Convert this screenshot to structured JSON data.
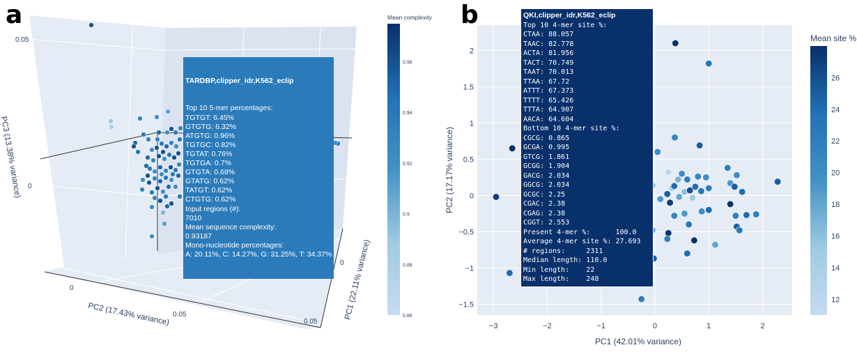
{
  "panels": {
    "a": {
      "letter": "a"
    },
    "b": {
      "letter": "b"
    }
  },
  "chart_data": [
    {
      "type": "scatter",
      "projection": "3d",
      "xlabel": "PC1 (22.11% variance)",
      "ylabel": "PC2 (17.43% variance)",
      "zlabel": "PC3 (13.38% variance)",
      "x_ticks": [
        "0",
        "0.05"
      ],
      "y_ticks": [
        "0",
        "0.05"
      ],
      "z_ticks": [
        "0",
        "0.05"
      ],
      "colorbar": {
        "title": "Mean complexity",
        "colorscale": "Blues",
        "range": [
          0.86,
          0.975
        ],
        "ticks": [
          0.86,
          0.88,
          0.9,
          0.92,
          0.94,
          0.96
        ],
        "tick_labels": [
          "0.86",
          "0.88",
          "0.9",
          "0.92",
          "0.94",
          "0.96"
        ]
      },
      "grid": true,
      "tooltip": {
        "title": "TARDBP,clipper_idr,K562_eclip",
        "lines": [
          "Top 10 5-mer percentages:",
          "TGTGT: 6.45%",
          "GTGTG: 6.32%",
          "ATGTG: 0.96%",
          "TGTGC: 0.82%",
          "TGTAT: 0.76%",
          "TGTGA: 0.7%",
          "GTGTA: 0.68%",
          "GTATG: 0.62%",
          "TATGT: 0.62%",
          "CTGTG: 0.62%",
          "Input regions (#):",
          "7010",
          "Mean sequence complexity:",
          "0.93187",
          "Mono-nucleotide percentages:",
          "A: 20.11%, C: 14.27%, G: 31.25%, T: 34.37%"
        ]
      },
      "points_projected": [
        {
          "u": 131,
          "v": 36,
          "c": 0.96
        },
        {
          "u": 159,
          "v": 174,
          "c": 0.89
        },
        {
          "u": 160,
          "v": 182,
          "c": 0.88
        },
        {
          "u": 218,
          "v": 339,
          "c": 0.92
        },
        {
          "u": 234,
          "v": 305,
          "c": 0.9
        },
        {
          "u": 236,
          "v": 321,
          "c": 0.91
        },
        {
          "u": 485,
          "v": 206,
          "c": 0.94
        },
        {
          "u": 481,
          "v": 205,
          "c": 0.92
        },
        {
          "u": 201,
          "v": 170,
          "c": 0.93
        },
        {
          "u": 225,
          "v": 168,
          "c": 0.92
        },
        {
          "u": 241,
          "v": 160,
          "c": 0.91
        },
        {
          "u": 206,
          "v": 193,
          "c": 0.94
        },
        {
          "u": 194,
          "v": 205,
          "c": 0.95
        },
        {
          "u": 192,
          "v": 210,
          "c": 0.96
        },
        {
          "u": 213,
          "v": 200,
          "c": 0.93
        },
        {
          "u": 228,
          "v": 190,
          "c": 0.95
        },
        {
          "u": 240,
          "v": 190,
          "c": 0.92
        },
        {
          "u": 246,
          "v": 185,
          "c": 0.96
        },
        {
          "u": 252,
          "v": 190,
          "c": 0.94
        },
        {
          "u": 259,
          "v": 184,
          "c": 0.93
        },
        {
          "u": 218,
          "v": 215,
          "c": 0.92
        },
        {
          "u": 225,
          "v": 212,
          "c": 0.96
        },
        {
          "u": 232,
          "v": 206,
          "c": 0.94
        },
        {
          "u": 239,
          "v": 210,
          "c": 0.95
        },
        {
          "u": 246,
          "v": 205,
          "c": 0.93
        },
        {
          "u": 253,
          "v": 210,
          "c": 0.92
        },
        {
          "u": 212,
          "v": 226,
          "c": 0.95
        },
        {
          "u": 220,
          "v": 230,
          "c": 0.93
        },
        {
          "u": 228,
          "v": 224,
          "c": 0.96
        },
        {
          "u": 236,
          "v": 228,
          "c": 0.92
        },
        {
          "u": 243,
          "v": 222,
          "c": 0.94
        },
        {
          "u": 250,
          "v": 226,
          "c": 0.96
        },
        {
          "u": 215,
          "v": 242,
          "c": 0.94
        },
        {
          "u": 222,
          "v": 246,
          "c": 0.92
        },
        {
          "u": 230,
          "v": 240,
          "c": 0.95
        },
        {
          "u": 238,
          "v": 245,
          "c": 0.93
        },
        {
          "u": 245,
          "v": 240,
          "c": 0.96
        },
        {
          "u": 252,
          "v": 244,
          "c": 0.94
        },
        {
          "u": 205,
          "v": 258,
          "c": 0.92
        },
        {
          "u": 214,
          "v": 262,
          "c": 0.96
        },
        {
          "u": 222,
          "v": 256,
          "c": 0.93
        },
        {
          "u": 230,
          "v": 260,
          "c": 0.95
        },
        {
          "u": 238,
          "v": 255,
          "c": 0.94
        },
        {
          "u": 246,
          "v": 258,
          "c": 0.92
        },
        {
          "u": 204,
          "v": 272,
          "c": 0.93
        },
        {
          "u": 218,
          "v": 276,
          "c": 0.94
        },
        {
          "u": 226,
          "v": 270,
          "c": 0.96
        },
        {
          "u": 234,
          "v": 275,
          "c": 0.92
        },
        {
          "u": 242,
          "v": 268,
          "c": 0.95
        },
        {
          "u": 222,
          "v": 284,
          "c": 0.93
        },
        {
          "u": 230,
          "v": 288,
          "c": 0.96
        },
        {
          "u": 238,
          "v": 282,
          "c": 0.94
        },
        {
          "u": 218,
          "v": 297,
          "c": 0.92
        },
        {
          "u": 240,
          "v": 296,
          "c": 0.95
        },
        {
          "u": 258,
          "v": 200,
          "c": 0.94
        },
        {
          "u": 256,
          "v": 220,
          "c": 0.96
        },
        {
          "u": 257,
          "v": 236,
          "c": 0.93
        },
        {
          "u": 256,
          "v": 252,
          "c": 0.95
        },
        {
          "u": 252,
          "v": 268,
          "c": 0.92
        },
        {
          "u": 258,
          "v": 282,
          "c": 0.94
        },
        {
          "u": 246,
          "v": 292,
          "c": 0.96
        },
        {
          "u": 210,
          "v": 238,
          "c": 0.95
        },
        {
          "u": 198,
          "v": 218,
          "c": 0.94
        },
        {
          "u": 234,
          "v": 218,
          "c": 0.96
        },
        {
          "u": 248,
          "v": 250,
          "c": 0.94
        },
        {
          "u": 232,
          "v": 250,
          "c": 0.92
        },
        {
          "u": 226,
          "v": 200,
          "c": 0.93
        },
        {
          "u": 212,
          "v": 252,
          "c": 0.96
        }
      ]
    },
    {
      "type": "scatter",
      "xlabel": "PC1 (42.01% variance)",
      "ylabel": "PC2 (17.17% variance)",
      "xlim": [
        -3.3,
        2.55
      ],
      "ylim": [
        -1.65,
        2.35
      ],
      "x_ticks": [
        -3,
        -2,
        -1,
        0,
        1,
        2
      ],
      "y_ticks": [
        -1.5,
        -1,
        -0.5,
        0,
        0.5,
        1,
        1.5,
        2
      ],
      "x_tick_labels": [
        "−3",
        "−2",
        "−1",
        "0",
        "1",
        "2"
      ],
      "y_tick_labels": [
        "−1.5",
        "−1",
        "−0.5",
        "0",
        "0.5",
        "1",
        "1.5",
        "2"
      ],
      "colorbar": {
        "title": "Mean site %",
        "colorscale": "Blues",
        "range": [
          11,
          28
        ],
        "ticks": [
          12,
          14,
          16,
          18,
          20,
          22,
          24,
          26
        ],
        "tick_labels": [
          "12",
          "14",
          "16",
          "18",
          "20",
          "22",
          "24",
          "26"
        ]
      },
      "grid": true,
      "tooltip": {
        "title": "QKI,clipper_idr,K562_eclip",
        "lines": [
          "Top 10 4-mer site %:",
          "CTAA: 88.057",
          "TAAC: 82.778",
          "ACTA: 81.956",
          "TACT: 70.749",
          "TAAT: 70.013",
          "TTAA: 67.72",
          "ATTT: 67.373",
          "TTTT: 65.426",
          "TTTA: 64.907",
          "AACA: 64.604",
          "Bottom 10 4-mer site %:",
          "CGCG: 0.865",
          "GCGA: 0.995",
          "GTCG: 1.861",
          "GCGG: 1.904",
          "GACG: 2.034",
          "GGCG: 2.034",
          "GCGC: 2.25",
          "CGAC: 2.38",
          "CGAG: 2.38",
          "CGGT: 2.553",
          "Present 4-mer %:      100.0",
          "Average 4-mer site %: 27.693",
          "# regions:     2311",
          "Median length: 110.0",
          "Min length:    22",
          "Max length:    248"
        ]
      },
      "points": [
        {
          "x": -2.95,
          "y": -0.02,
          "c": 27
        },
        {
          "x": -2.65,
          "y": 0.65,
          "c": 28
        },
        {
          "x": -2.7,
          "y": -1.07,
          "c": 24
        },
        {
          "x": 0.38,
          "y": 2.1,
          "c": 28
        },
        {
          "x": 1.0,
          "y": 1.82,
          "c": 23
        },
        {
          "x": 0.37,
          "y": 0.8,
          "c": 21
        },
        {
          "x": 0.83,
          "y": 0.69,
          "c": 25
        },
        {
          "x": 0.05,
          "y": 0.6,
          "c": 20
        },
        {
          "x": -0.25,
          "y": -1.43,
          "c": 22
        },
        {
          "x": 0.23,
          "y": 0.02,
          "c": 25
        },
        {
          "x": 0.25,
          "y": 0.32,
          "c": 12
        },
        {
          "x": 0.32,
          "y": 0.1,
          "c": 15
        },
        {
          "x": 0.36,
          "y": 0.13,
          "c": 24
        },
        {
          "x": 0.43,
          "y": 0.22,
          "c": 17
        },
        {
          "x": 0.45,
          "y": -0.02,
          "c": 18
        },
        {
          "x": 0.5,
          "y": 0.3,
          "c": 20
        },
        {
          "x": 0.55,
          "y": 0.05,
          "c": 16
        },
        {
          "x": 0.6,
          "y": 0.22,
          "c": 22
        },
        {
          "x": 0.65,
          "y": 0.07,
          "c": 26
        },
        {
          "x": 0.7,
          "y": -0.03,
          "c": 15
        },
        {
          "x": 0.75,
          "y": 0.12,
          "c": 24
        },
        {
          "x": 0.8,
          "y": 0.26,
          "c": 21
        },
        {
          "x": 0.86,
          "y": 0.06,
          "c": 23
        },
        {
          "x": 0.95,
          "y": 0.25,
          "c": 20
        },
        {
          "x": 1.0,
          "y": 0.1,
          "c": 22
        },
        {
          "x": 0.1,
          "y": -0.05,
          "c": 19
        },
        {
          "x": -0.05,
          "y": 0.14,
          "c": 17
        },
        {
          "x": 0.28,
          "y": -0.1,
          "c": 27
        },
        {
          "x": 0.36,
          "y": -0.28,
          "c": 21
        },
        {
          "x": 0.55,
          "y": -0.25,
          "c": 19
        },
        {
          "x": 0.63,
          "y": -0.4,
          "c": 23
        },
        {
          "x": 0.87,
          "y": -0.22,
          "c": 20
        },
        {
          "x": 1.0,
          "y": -0.2,
          "c": 24
        },
        {
          "x": 0.25,
          "y": -0.52,
          "c": 28
        },
        {
          "x": 0.23,
          "y": -0.6,
          "c": 22
        },
        {
          "x": 0.73,
          "y": -0.62,
          "c": 28
        },
        {
          "x": 0.6,
          "y": -0.8,
          "c": 24
        },
        {
          "x": 1.12,
          "y": -0.68,
          "c": 18
        },
        {
          "x": -0.02,
          "y": -0.87,
          "c": 25
        },
        {
          "x": -0.05,
          "y": -0.48,
          "c": 19
        },
        {
          "x": 1.35,
          "y": 0.38,
          "c": 22
        },
        {
          "x": 1.4,
          "y": 0.17,
          "c": 19
        },
        {
          "x": 1.48,
          "y": 0.12,
          "c": 25
        },
        {
          "x": 1.52,
          "y": 0.28,
          "c": 20
        },
        {
          "x": 1.62,
          "y": 0.05,
          "c": 24
        },
        {
          "x": 1.4,
          "y": -0.12,
          "c": 28
        },
        {
          "x": 1.5,
          "y": -0.28,
          "c": 22
        },
        {
          "x": 1.7,
          "y": -0.27,
          "c": 24
        },
        {
          "x": 1.52,
          "y": -0.43,
          "c": 25
        },
        {
          "x": 1.57,
          "y": -0.48,
          "c": 23
        },
        {
          "x": 1.88,
          "y": -0.26,
          "c": 22
        },
        {
          "x": 2.28,
          "y": 0.19,
          "c": 25
        }
      ]
    }
  ]
}
